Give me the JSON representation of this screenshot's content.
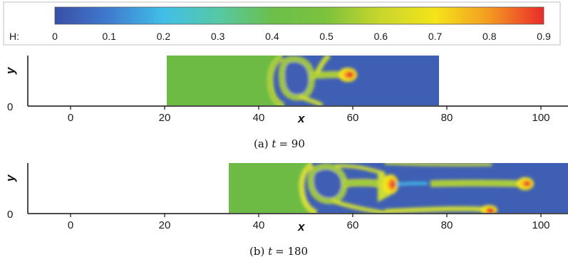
{
  "colorbar": {
    "label": "H:",
    "ticks": [
      "0",
      "0.1",
      "0.2",
      "0.3",
      "0.4",
      "0.5",
      "0.6",
      "0.7",
      "0.8",
      "0.9"
    ],
    "colors": [
      "#3a4fa6",
      "#3f7bd0",
      "#41bfe8",
      "#55c8a6",
      "#6bbf4a",
      "#7cc23c",
      "#c9d62c",
      "#f4e41a",
      "#f39a22",
      "#ea2a2a"
    ]
  },
  "chart_data": [
    {
      "type": "heatmap",
      "caption_prefix": "(a) ",
      "caption_var": "t",
      "caption_value": "= 90",
      "xlabel": "x",
      "ylabel": "y",
      "xlim": [
        -10,
        108
      ],
      "xticks": [
        "0",
        "20",
        "40",
        "60",
        "80",
        "100"
      ],
      "yticks": [
        "0"
      ],
      "domain_x": [
        21,
        80
      ],
      "H_values": {
        "green_region": 0.45,
        "blue_region": 0.05,
        "tip_max": 0.85
      }
    },
    {
      "type": "heatmap",
      "caption_prefix": "(b) ",
      "caption_var": "t",
      "caption_value": "= 180",
      "xlabel": "x",
      "ylabel": "y",
      "xlim": [
        -10,
        108
      ],
      "xticks": [
        "0",
        "20",
        "40",
        "60",
        "80",
        "100"
      ],
      "yticks": [
        "0"
      ],
      "domain_x": [
        34,
        108
      ],
      "H_values": {
        "green_region": 0.45,
        "blue_region": 0.05,
        "tip_max": 0.85
      }
    }
  ]
}
